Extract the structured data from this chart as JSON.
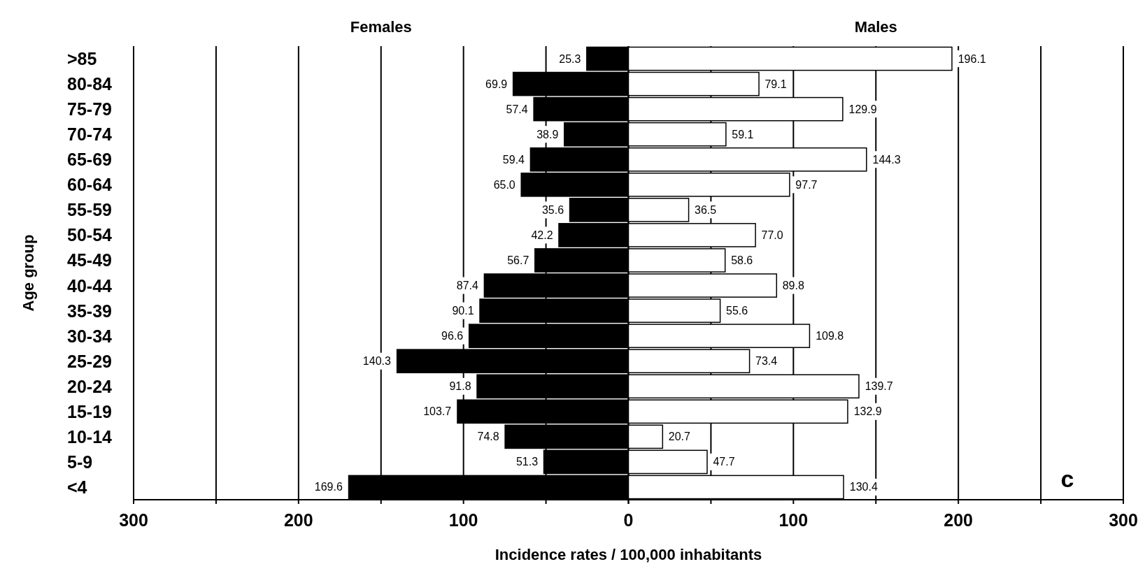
{
  "chart_data": [
    {
      "type": "bar",
      "orientation": "horizontal",
      "categories": [
        ">85",
        "80-84",
        "75-79",
        "70-74",
        "65-69",
        "60-64",
        "55-59",
        "50-54",
        "45-49",
        "40-44",
        "35-39",
        "30-34",
        "25-29",
        "20-24",
        "15-19",
        "10-14",
        "5-9",
        "<4"
      ],
      "series": [
        {
          "name": "Females",
          "color": "#000000",
          "values": [
            25.3,
            69.9,
            57.4,
            38.9,
            59.4,
            65.0,
            35.6,
            42.2,
            56.7,
            87.4,
            90.1,
            96.6,
            140.3,
            91.8,
            103.7,
            74.8,
            51.3,
            169.6
          ],
          "value_labels": [
            "25.3",
            "69.9",
            "57.4",
            "38.9",
            "59.4",
            "65.0",
            "35.6",
            "42.2",
            "56.7",
            "87.4",
            "90.1",
            "96.6",
            "140.3",
            "91.8",
            "103.7",
            "74.8",
            "51.3",
            "169.6"
          ]
        }
      ],
      "xlim": [
        300,
        0
      ],
      "xticks": [
        300,
        {
          "value": 250,
          "label": null
        },
        200,
        {
          "value": 150,
          "label": null
        },
        100,
        {
          "value": 50,
          "label": null
        },
        0
      ],
      "grid": "x",
      "xlabel": "Incidence rates / 100,000 inhabitants",
      "ylabel": "Age group"
    },
    {
      "type": "bar",
      "orientation": "horizontal",
      "categories": [
        null,
        null,
        null,
        null,
        null,
        null,
        null,
        null,
        null,
        null,
        null,
        null,
        null,
        null,
        null,
        null,
        null,
        null
      ],
      "series": [
        {
          "name": "Males",
          "color": "#ffffff",
          "values": [
            196.1,
            79.1,
            129.9,
            59.1,
            144.3,
            97.7,
            36.5,
            77.0,
            58.6,
            89.8,
            55.6,
            109.8,
            73.4,
            139.7,
            132.9,
            20.7,
            47.7,
            130.4
          ],
          "value_labels": [
            "196.1",
            "79.1",
            "129.9",
            "59.1",
            "144.3",
            "97.7",
            "36.5",
            "77.0",
            "58.6",
            "89.8",
            "55.6",
            "109.8",
            "73.4",
            "139.7",
            "132.9",
            "20.7",
            "47.7",
            "130.4"
          ]
        }
      ],
      "xlim": [
        0,
        300
      ],
      "xticks": [
        {
          "value": 0,
          "label": null
        },
        {
          "value": 50,
          "label": null
        },
        100,
        {
          "value": 150,
          "label": null
        },
        200,
        {
          "value": 250,
          "label": null
        },
        300
      ],
      "grid": "x",
      "tick_labels": "x",
      "annotations": [
        "c"
      ]
    }
  ]
}
